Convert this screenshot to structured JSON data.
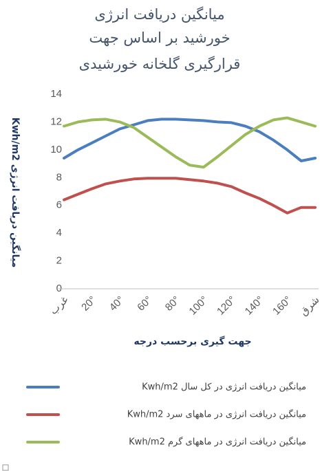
{
  "chart_data": {
    "type": "line",
    "title": [
      "میانگین دریافت انرژی",
      "خورشید بر اساس جهت",
      "قرارگیری گلخانه خورشیدی"
    ],
    "x_label": "جهت گیری برحسب درجه",
    "y_label": "میانگین دریافت انرژی Kwh/m2",
    "categories": [
      "غرب",
      null,
      "20°",
      null,
      "40°",
      null,
      "60°",
      null,
      "80°",
      null,
      "100°",
      null,
      "120°",
      null,
      "140°",
      null,
      "160°",
      null,
      "شرق"
    ],
    "ylim": [
      0,
      14
    ],
    "yticks": [
      0,
      2,
      4,
      6,
      8,
      10,
      12,
      14
    ],
    "grid": false,
    "series": [
      {
        "name": "میانگین دریافت انرژی در کل سال Kwh/m2",
        "color": "#4a7ebf",
        "values": [
          9.4,
          10.0,
          10.5,
          11.0,
          11.5,
          11.8,
          12.1,
          12.2,
          12.2,
          12.15,
          12.1,
          12.0,
          11.95,
          11.7,
          11.3,
          10.7,
          10.0,
          9.2,
          9.4
        ]
      },
      {
        "name": "میانگین دریافت انرژی در ماههای سرد Kwh/m2",
        "color": "#c0504d",
        "values": [
          6.4,
          6.8,
          7.2,
          7.55,
          7.75,
          7.9,
          7.95,
          7.95,
          7.95,
          7.85,
          7.75,
          7.6,
          7.35,
          6.9,
          6.5,
          6.0,
          5.45,
          5.85,
          5.85
        ]
      },
      {
        "name": "میانگین دریافت انرژی در ماههای گرم Kwh/m2",
        "color": "#9bbb59",
        "values": [
          11.7,
          12.0,
          12.15,
          12.2,
          12.0,
          11.6,
          10.9,
          10.2,
          9.5,
          8.9,
          8.75,
          9.5,
          10.3,
          11.1,
          11.7,
          12.15,
          12.3,
          12.0,
          11.7
        ]
      }
    ]
  }
}
